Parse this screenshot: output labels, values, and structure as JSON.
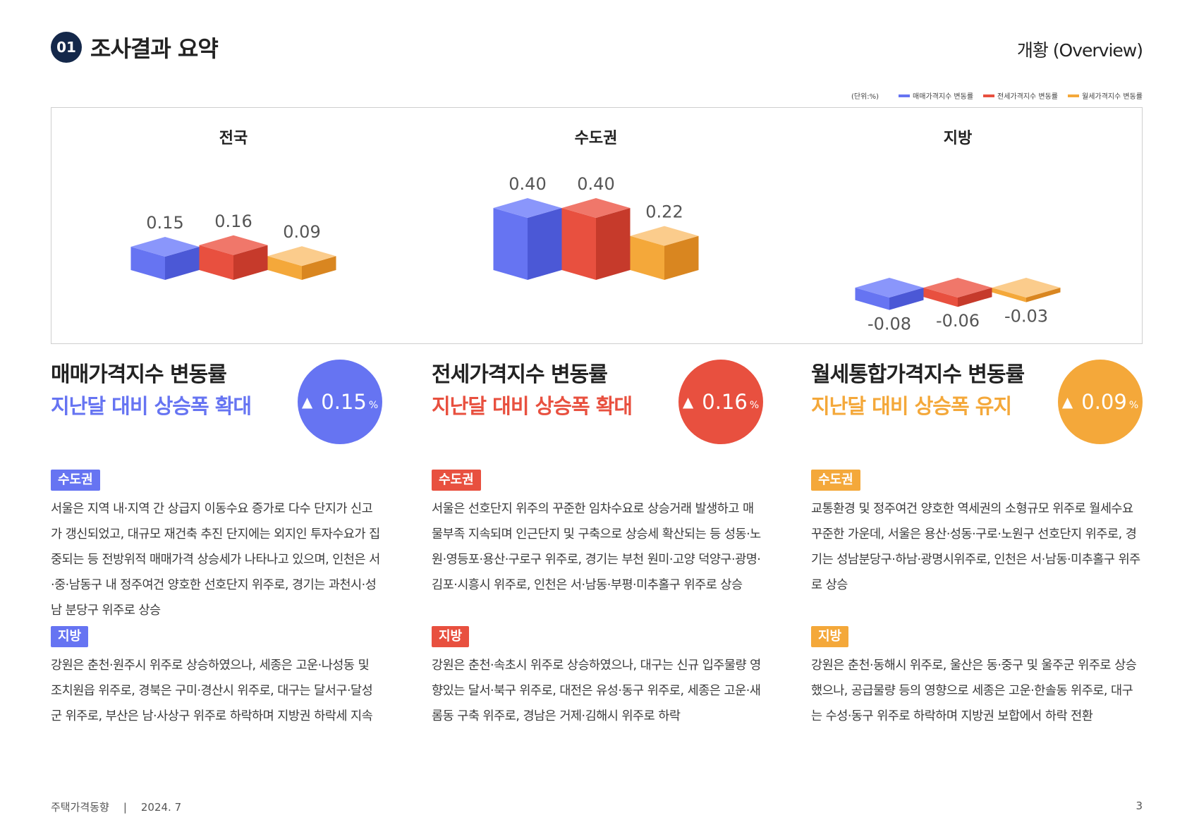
{
  "header": {
    "section_number": "01",
    "section_title": "조사결과 요약",
    "overview_label": "개황 (Overview)"
  },
  "legend": {
    "unit": "(단위:%)",
    "items": [
      {
        "label": "매매가격지수 변동률",
        "color": "#6674f2"
      },
      {
        "label": "전세가격지수 변동률",
        "color": "#e8503f"
      },
      {
        "label": "월세가격지수 변동률",
        "color": "#f4a83a"
      }
    ]
  },
  "chart_data": {
    "type": "bar",
    "categories": [
      "전국",
      "수도권",
      "지방"
    ],
    "series": [
      {
        "name": "매매가격지수 변동률",
        "values": [
          0.15,
          0.4,
          -0.08
        ],
        "labels": [
          "0.15",
          "0.40",
          "-0.08"
        ]
      },
      {
        "name": "전세가격지수 변동률",
        "values": [
          0.16,
          0.4,
          -0.06
        ],
        "labels": [
          "0.16",
          "0.40",
          "-0.06"
        ]
      },
      {
        "name": "월세가격지수 변동률",
        "values": [
          0.09,
          0.22,
          -0.03
        ],
        "labels": [
          "0.09",
          "0.22",
          "-0.03"
        ]
      }
    ],
    "colors": {
      "sale": {
        "top": "#8a96fb",
        "front": "#6674f2",
        "side": "#4b58d6"
      },
      "jeonse": {
        "top": "#f0776a",
        "front": "#e8503f",
        "side": "#c63a2b"
      },
      "monthly": {
        "top": "#fbcc8c",
        "front": "#f4a83a",
        "side": "#d98620"
      }
    },
    "grid": false
  },
  "columns": [
    {
      "title": "매매가격지수 변동률",
      "subtitle": "지난달 대비 상승폭 확대",
      "color": "#6674f2",
      "bubble_arrow": "▲",
      "bubble_value": "0.15",
      "bubble_unit": "%",
      "capital_tag": "수도권",
      "capital_text": "서울은 지역 내·지역 간 상급지 이동수요 증가로 다수 단지가 신고가 갱신되었고, 대규모 재건축 추진 단지에는 외지인 투자수요가 집중되는 등 전방위적 매매가격 상승세가 나타나고 있으며, 인천은 서·중·남동구 내 정주여건 양호한 선호단지 위주로, 경기는 과천시·성남 분당구 위주로 상승",
      "local_tag": "지방",
      "local_text": "강원은 춘천·원주시 위주로 상승하였으나, 세종은 고운·나성동 및 조치원읍 위주로, 경북은 구미·경산시 위주로, 대구는 달서구·달성군 위주로, 부산은 남·사상구 위주로 하락하며 지방권 하락세 지속"
    },
    {
      "title": "전세가격지수 변동률",
      "subtitle": "지난달 대비 상승폭 확대",
      "color": "#e8503f",
      "bubble_arrow": "▲",
      "bubble_value": "0.16",
      "bubble_unit": "%",
      "capital_tag": "수도권",
      "capital_text": "서울은 선호단지 위주의 꾸준한 임차수요로 상승거래 발생하고 매물부족 지속되며 인근단지 및 구축으로 상승세 확산되는 등 성동·노원·영등포·용산·구로구 위주로, 경기는 부천 원미·고양 덕양구·광명·김포·시흥시 위주로, 인천은 서·남동·부평·미추홀구 위주로 상승",
      "local_tag": "지방",
      "local_text": "강원은 춘천·속초시 위주로 상승하였으나, 대구는 신규 입주물량 영향있는 달서·북구 위주로, 대전은 유성·동구 위주로, 세종은 고운·새롬동 구축 위주로, 경남은 거제·김해시 위주로 하락"
    },
    {
      "title": "월세통합가격지수 변동률",
      "subtitle": "지난달 대비 상승폭 유지",
      "color": "#f4a83a",
      "bubble_arrow": "▲",
      "bubble_value": "0.09",
      "bubble_unit": "%",
      "capital_tag": "수도권",
      "capital_text": "교통환경 및 정주여건 양호한 역세권의 소형규모 위주로 월세수요 꾸준한 가운데, 서울은 용산·성동·구로·노원구 선호단지 위주로, 경기는 성남분당구·하남·광명시위주로, 인천은 서·남동·미추홀구 위주로 상승",
      "local_tag": "지방",
      "local_text": "강원은 춘천·동해시 위주로, 울산은 동·중구 및 울주군 위주로 상승했으나, 공급물량 등의 영향으로 세종은 고운·한솔동 위주로, 대구는 수성·동구 위주로 하락하며 지방권 보합에서 하락 전환"
    }
  ],
  "footer": {
    "publication": "주택가격동향",
    "separator": "|",
    "date": "2024. 7",
    "page": "3"
  }
}
